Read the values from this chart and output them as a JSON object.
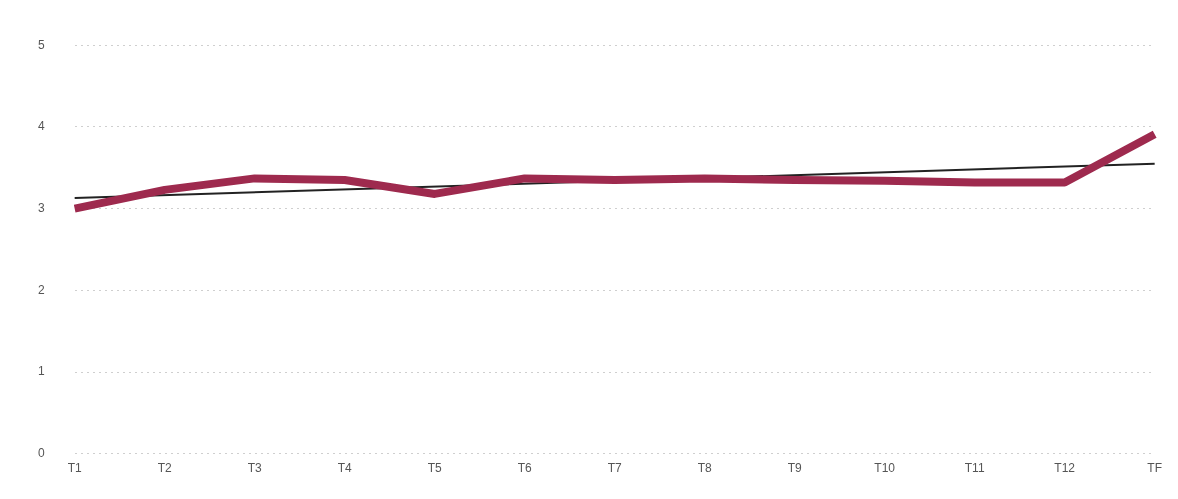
{
  "chart_data": {
    "type": "line",
    "categories": [
      "T1",
      "T2",
      "T3",
      "T4",
      "T5",
      "T6",
      "T7",
      "T8",
      "T9",
      "T10",
      "T11",
      "T12",
      "TF"
    ],
    "series": [
      {
        "color": "#9e2a4e",
        "values": [
          3.0,
          3.23,
          3.37,
          3.35,
          3.18,
          3.37,
          3.35,
          3.37,
          3.35,
          3.34,
          3.32,
          3.32,
          3.91
        ]
      },
      {
        "type": "line",
        "color": "#222222",
        "values": [
          3.13,
          null,
          null,
          null,
          null,
          null,
          null,
          null,
          null,
          null,
          null,
          null,
          3.55
        ]
      }
    ],
    "ylim": [
      0,
      5
    ],
    "yticks": [
      0,
      1,
      2,
      3,
      4,
      5
    ],
    "grid": "y",
    "legend": false,
    "marker": "none"
  }
}
